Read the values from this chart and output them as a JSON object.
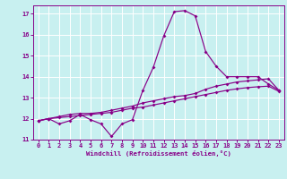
{
  "xlabel": "Windchill (Refroidissement éolien,°C)",
  "xlim": [
    -0.5,
    23.5
  ],
  "ylim": [
    11,
    17.4
  ],
  "yticks": [
    11,
    12,
    13,
    14,
    15,
    16,
    17
  ],
  "xticks": [
    0,
    1,
    2,
    3,
    4,
    5,
    6,
    7,
    8,
    9,
    10,
    11,
    12,
    13,
    14,
    15,
    16,
    17,
    18,
    19,
    20,
    21,
    22,
    23
  ],
  "bg_color": "#c8f0f0",
  "grid_color": "#aadddd",
  "line_color": "#880088",
  "curve1_x": [
    0,
    1,
    2,
    3,
    4,
    5,
    6,
    7,
    8,
    9,
    10,
    11,
    12,
    13,
    14,
    15,
    16,
    17,
    18,
    19,
    20,
    21,
    22,
    23
  ],
  "curve1_y": [
    11.9,
    12.0,
    11.75,
    11.9,
    12.2,
    11.95,
    11.75,
    11.15,
    11.75,
    11.95,
    13.35,
    14.45,
    15.95,
    17.1,
    17.15,
    16.9,
    15.2,
    14.5,
    14.0,
    14.0,
    14.0,
    14.0,
    13.65,
    13.35
  ],
  "curve2_x": [
    0,
    1,
    2,
    3,
    4,
    5,
    6,
    7,
    8,
    9,
    10,
    11,
    12,
    13,
    14,
    15,
    16,
    17,
    18,
    19,
    20,
    21,
    22,
    23
  ],
  "curve2_y": [
    11.9,
    12.0,
    12.1,
    12.2,
    12.25,
    12.25,
    12.3,
    12.4,
    12.5,
    12.6,
    12.75,
    12.85,
    12.95,
    13.05,
    13.1,
    13.2,
    13.4,
    13.55,
    13.65,
    13.75,
    13.8,
    13.85,
    13.9,
    13.35
  ],
  "curve3_x": [
    0,
    1,
    2,
    3,
    4,
    5,
    6,
    7,
    8,
    9,
    10,
    11,
    12,
    13,
    14,
    15,
    16,
    17,
    18,
    19,
    20,
    21,
    22,
    23
  ],
  "curve3_y": [
    11.9,
    12.0,
    12.05,
    12.1,
    12.15,
    12.2,
    12.25,
    12.3,
    12.4,
    12.5,
    12.55,
    12.65,
    12.75,
    12.85,
    12.95,
    13.05,
    13.15,
    13.25,
    13.35,
    13.42,
    13.48,
    13.52,
    13.55,
    13.3
  ]
}
